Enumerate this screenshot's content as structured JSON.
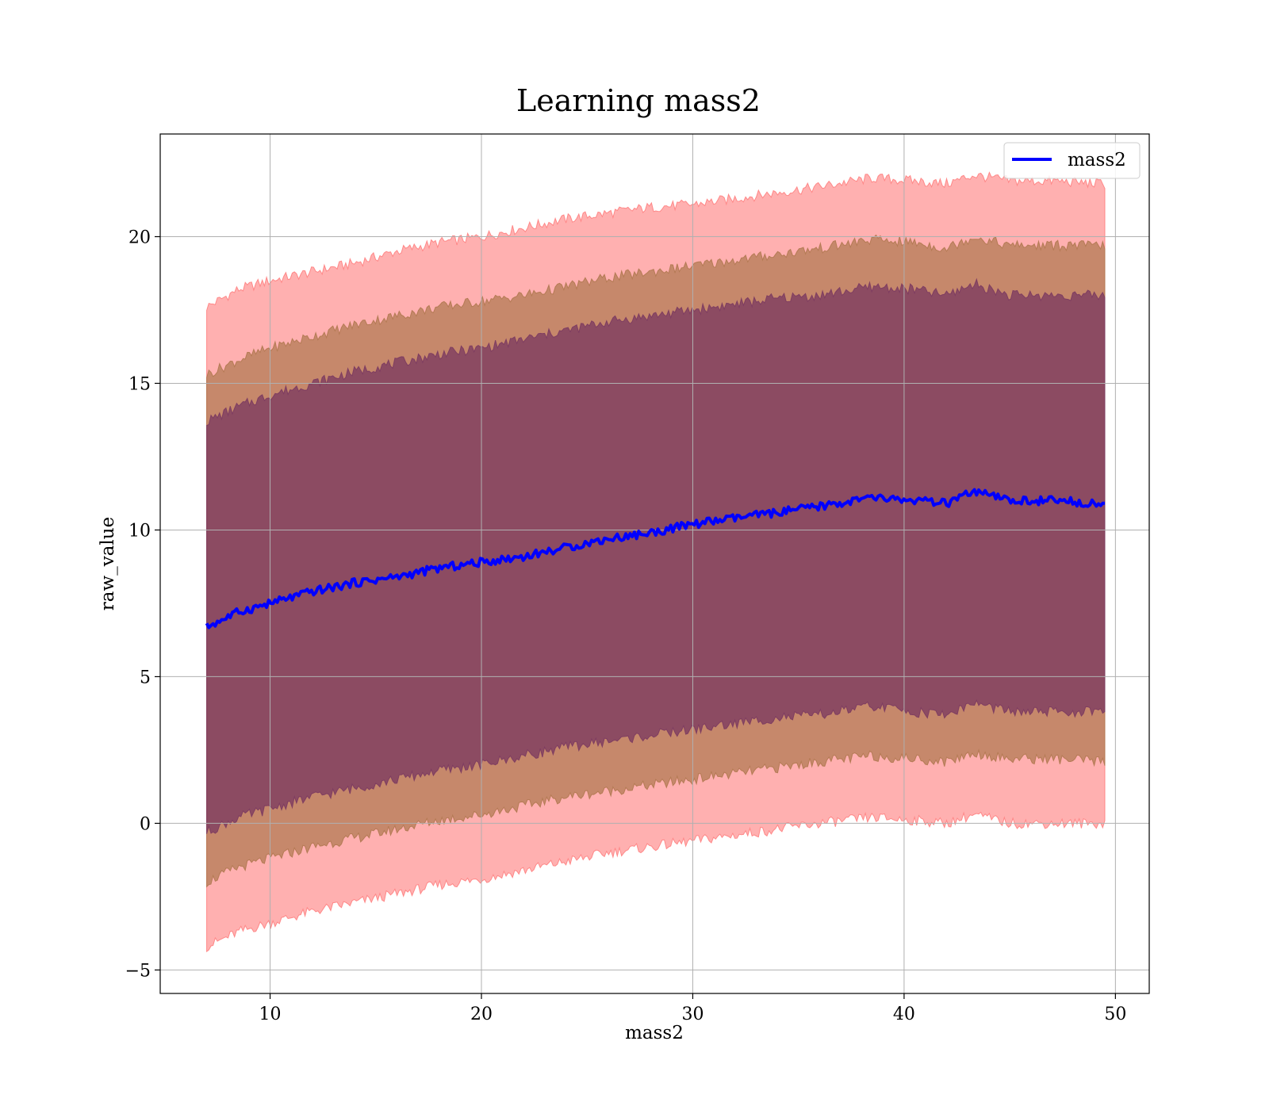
{
  "chart_data": {
    "type": "line",
    "title": "Learning mass2",
    "xlabel": "mass2",
    "ylabel": "raw_value",
    "xlim": [
      4.8,
      51.6
    ],
    "ylim": [
      -5.8,
      23.5
    ],
    "xticks": [
      10,
      20,
      30,
      40,
      50
    ],
    "yticks": [
      -5,
      0,
      5,
      10,
      15,
      20
    ],
    "xtick_labels": [
      "10",
      "20",
      "30",
      "40",
      "50"
    ],
    "ytick_labels": [
      "−5",
      "0",
      "5",
      "10",
      "15",
      "20"
    ],
    "grid": true,
    "legend": {
      "position": "top-right",
      "entries": [
        "mass2"
      ]
    },
    "colors": {
      "mean_line": "#0000ff",
      "band_outer": "#ff8080",
      "band_middle": "#b07850",
      "band_inner": "#7b3a60",
      "grid": "#b0b0b0"
    },
    "x": [
      7.0,
      8.5,
      10.0,
      12.0,
      14.0,
      16.0,
      18.0,
      20.0,
      22.0,
      24.0,
      26.0,
      28.0,
      30.0,
      32.0,
      34.0,
      36.0,
      38.5,
      40.5,
      42.0,
      43.3,
      45.0,
      47.0,
      49.5
    ],
    "series": [
      {
        "name": "mass2",
        "values": [
          6.7,
          7.2,
          7.5,
          7.9,
          8.2,
          8.4,
          8.7,
          8.9,
          9.1,
          9.4,
          9.7,
          9.9,
          10.2,
          10.4,
          10.6,
          10.8,
          11.1,
          11.0,
          10.9,
          11.3,
          11.0,
          11.0,
          10.9
        ]
      }
    ],
    "bands": [
      {
        "level": "outer",
        "upper": [
          17.6,
          18.2,
          18.5,
          18.8,
          19.1,
          19.5,
          19.8,
          20.0,
          20.3,
          20.6,
          20.8,
          21.0,
          21.1,
          21.3,
          21.5,
          21.7,
          22.0,
          21.9,
          21.8,
          22.1,
          21.9,
          21.9,
          21.8
        ],
        "lower": [
          -4.2,
          -3.7,
          -3.4,
          -3.0,
          -2.7,
          -2.4,
          -2.1,
          -1.9,
          -1.6,
          -1.3,
          -1.0,
          -0.8,
          -0.6,
          -0.4,
          -0.2,
          0.0,
          0.2,
          0.1,
          0.0,
          0.3,
          0.0,
          0.0,
          0.0
        ]
      },
      {
        "level": "middle",
        "upper": [
          15.3,
          15.8,
          16.2,
          16.6,
          17.0,
          17.3,
          17.6,
          17.8,
          18.0,
          18.3,
          18.6,
          18.8,
          19.0,
          19.2,
          19.4,
          19.6,
          19.9,
          19.8,
          19.6,
          20.0,
          19.7,
          19.7,
          19.7
        ],
        "lower": [
          -2.0,
          -1.5,
          -1.2,
          -0.8,
          -0.5,
          -0.2,
          0.1,
          0.3,
          0.6,
          0.9,
          1.1,
          1.3,
          1.5,
          1.7,
          1.9,
          2.1,
          2.3,
          2.2,
          2.1,
          2.4,
          2.2,
          2.2,
          2.1
        ]
      },
      {
        "level": "inner",
        "upper": [
          13.7,
          14.2,
          14.6,
          15.0,
          15.4,
          15.7,
          16.0,
          16.2,
          16.5,
          16.8,
          17.1,
          17.3,
          17.5,
          17.7,
          17.9,
          18.0,
          18.3,
          18.2,
          18.0,
          18.4,
          18.0,
          18.0,
          18.0
        ],
        "lower": [
          -0.3,
          0.2,
          0.5,
          0.9,
          1.2,
          1.5,
          1.8,
          2.0,
          2.3,
          2.6,
          2.8,
          3.0,
          3.2,
          3.4,
          3.6,
          3.7,
          4.0,
          3.8,
          3.7,
          4.1,
          3.8,
          3.8,
          3.8
        ]
      }
    ]
  }
}
